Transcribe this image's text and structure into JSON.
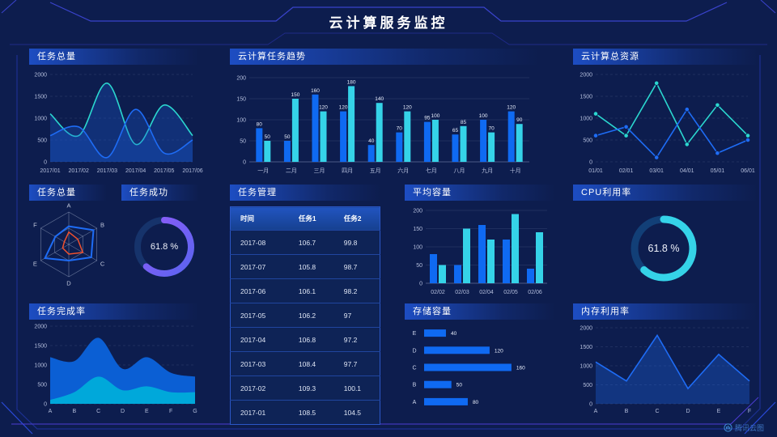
{
  "title": "云计算服务监控",
  "watermark": {
    "label": "腾讯云图"
  },
  "colors": {
    "background": "#0d1d4e",
    "blue": "#1e6cf5",
    "teal": "#2bd7cf",
    "cyan": "#35d3e8",
    "barBlue": "#0f6af2",
    "orange": "#f0512e",
    "areaBlue": "#0b5fd4",
    "areaCyan": "#00a8da",
    "purple1": "#8e5cf8",
    "purple2": "#5a64f0",
    "donutTrackPurple": "#16336b",
    "donutTrackCyan": "#123f77",
    "headerGradient": "#1d4dc2"
  },
  "panels": {
    "p1": {
      "title": "任务总量"
    },
    "p2": {
      "title": "云计算任务趋势"
    },
    "p3": {
      "title": "云计算总资源"
    },
    "p4": {
      "title": "任务总量"
    },
    "p5": {
      "title": "任务成功",
      "value": "61.8 %"
    },
    "p6": {
      "title": "任务管理"
    },
    "p7": {
      "title": "平均容量"
    },
    "p8": {
      "title": "CPU利用率",
      "value": "61.8 %"
    },
    "p9": {
      "title": "任务完成率"
    },
    "p10": {
      "title": "存储容量"
    },
    "p11": {
      "title": "内存利用率"
    }
  },
  "chart_data": [
    {
      "id": "p1",
      "type": "line",
      "title": "任务总量",
      "smooth": true,
      "grid": "dashed",
      "x": [
        "2017/01",
        "2017/02",
        "2017/03",
        "2017/04",
        "2017/05",
        "2017/06"
      ],
      "ylim": [
        0,
        2000
      ],
      "yticks": [
        0,
        500,
        1000,
        1500,
        2000
      ],
      "series": [
        {
          "name": "series-teal",
          "color": "teal",
          "fill": true,
          "fill_color": "#1b5ed8",
          "values": [
            1100,
            600,
            1800,
            400,
            1300,
            600
          ]
        },
        {
          "name": "series-blue",
          "color": "blue",
          "fill": true,
          "fill_color": "#1b5ed8",
          "values": [
            600,
            800,
            100,
            1200,
            200,
            500
          ]
        }
      ]
    },
    {
      "id": "p2",
      "type": "bar",
      "title": "云计算任务趋势",
      "labels": true,
      "categories": [
        "一月",
        "二月",
        "三月",
        "四月",
        "五月",
        "六月",
        "七月",
        "八月",
        "九月",
        "十月"
      ],
      "ylim": [
        0,
        200
      ],
      "yticks": [
        0,
        50,
        100,
        150,
        200
      ],
      "series": [
        {
          "name": "任务1",
          "color": "barBlue",
          "values": [
            80,
            50,
            160,
            120,
            40,
            70,
            95,
            65,
            100,
            120
          ]
        },
        {
          "name": "任务2",
          "color": "cyan",
          "values": [
            50,
            150,
            120,
            180,
            140,
            120,
            100,
            85,
            70,
            90
          ]
        }
      ]
    },
    {
      "id": "p3",
      "type": "line",
      "title": "云计算总资源",
      "smooth": false,
      "markers": true,
      "grid": "dashed",
      "x": [
        "01/01",
        "02/01",
        "03/01",
        "04/01",
        "05/01",
        "06/01"
      ],
      "ylim": [
        0,
        2000
      ],
      "yticks": [
        0,
        500,
        1000,
        1500,
        2000
      ],
      "series": [
        {
          "name": "series-teal",
          "color": "teal",
          "values": [
            1100,
            600,
            1800,
            400,
            1300,
            600
          ]
        },
        {
          "name": "series-blue",
          "color": "blue",
          "values": [
            600,
            800,
            100,
            1200,
            200,
            500
          ]
        }
      ]
    },
    {
      "id": "p4",
      "type": "radar",
      "title": "任务总量",
      "max": 100,
      "categories": [
        "A",
        "B",
        "C",
        "D",
        "E",
        "F"
      ],
      "series": [
        {
          "name": "radar-blue",
          "color": "blue",
          "values": [
            56,
            88,
            80,
            50,
            85,
            48
          ]
        },
        {
          "name": "radar-orange",
          "color": "orange",
          "values": [
            38,
            32,
            50,
            30,
            22,
            16
          ]
        }
      ]
    },
    {
      "id": "p5",
      "type": "donut",
      "title": "任务成功",
      "value": 61.8,
      "unit": "%",
      "arc_colors": [
        "purple1",
        "purple2"
      ],
      "track": "donutTrackPurple"
    },
    {
      "id": "p6",
      "type": "table",
      "title": "任务管理",
      "columns": [
        "时间",
        "任务1",
        "任务2"
      ],
      "rows": [
        [
          "2017-08",
          "106.7",
          "99.8"
        ],
        [
          "2017-07",
          "105.8",
          "98.7"
        ],
        [
          "2017-06",
          "106.1",
          "98.2"
        ],
        [
          "2017-05",
          "106.2",
          "97"
        ],
        [
          "2017-04",
          "106.8",
          "97.2"
        ],
        [
          "2017-03",
          "108.4",
          "97.7"
        ],
        [
          "2017-02",
          "109.3",
          "100.1"
        ],
        [
          "2017-01",
          "108.5",
          "104.5"
        ]
      ]
    },
    {
      "id": "p7",
      "type": "bar",
      "title": "平均容量",
      "labels": false,
      "categories": [
        "02/02",
        "02/03",
        "02/04",
        "02/05",
        "02/06"
      ],
      "ylim": [
        0,
        200
      ],
      "yticks": [
        0,
        50,
        100,
        150,
        200
      ],
      "series": [
        {
          "name": "series-blue",
          "color": "barBlue",
          "values": [
            80,
            50,
            160,
            120,
            40
          ]
        },
        {
          "name": "series-cyan",
          "color": "cyan",
          "values": [
            50,
            150,
            120,
            190,
            140
          ]
        }
      ]
    },
    {
      "id": "p8",
      "type": "donut",
      "title": "CPU利用率",
      "value": 61.8,
      "unit": "%",
      "arc_colors": [
        "cyan"
      ],
      "track": "donutTrackCyan"
    },
    {
      "id": "p9",
      "type": "area",
      "title": "任务完成率",
      "smooth": true,
      "grid": "dashed",
      "x": [
        "A",
        "B",
        "C",
        "D",
        "E",
        "F",
        "G"
      ],
      "ylim": [
        0,
        2000
      ],
      "yticks": [
        0,
        500,
        1000,
        1500,
        2000
      ],
      "series": [
        {
          "name": "area-blue",
          "color": "areaBlue",
          "values": [
            1200,
            1100,
            1700,
            900,
            1200,
            800,
            700
          ]
        },
        {
          "name": "area-cyan",
          "color": "areaCyan",
          "values": [
            100,
            300,
            700,
            350,
            450,
            300,
            300
          ]
        }
      ]
    },
    {
      "id": "p10",
      "type": "hbar",
      "title": "存储容量",
      "color": "barBlue",
      "xmax": 175,
      "categories": [
        "E",
        "D",
        "C",
        "B",
        "A"
      ],
      "values": [
        40,
        120,
        160,
        50,
        80
      ]
    },
    {
      "id": "p11",
      "type": "line",
      "title": "内存利用率",
      "smooth": false,
      "grid": "dashed",
      "x": [
        "A",
        "B",
        "C",
        "D",
        "E",
        "F"
      ],
      "ylim": [
        0,
        2000
      ],
      "yticks": [
        0,
        500,
        1000,
        1500,
        2000
      ],
      "series": [
        {
          "name": "memory",
          "color": "blue",
          "fill": true,
          "values": [
            1100,
            600,
            1800,
            400,
            1300,
            600
          ]
        }
      ]
    }
  ]
}
